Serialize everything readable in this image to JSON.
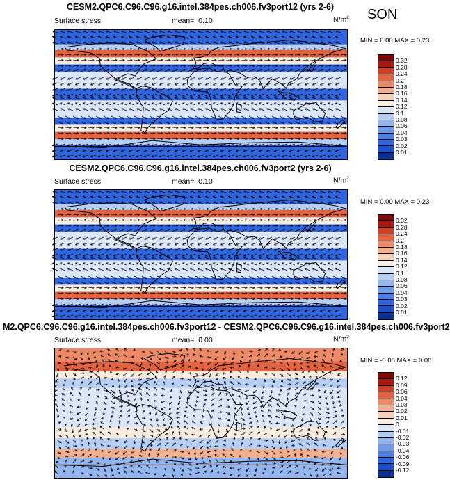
{
  "season": "SON",
  "palette_abs": [
    "#0a2f8f",
    "#1a4fc8",
    "#2f66dd",
    "#4a7fe6",
    "#6d9aeb",
    "#94b6f0",
    "#b8cff5",
    "#dbe6f9",
    "#f8ecdf",
    "#f6d2b8",
    "#f2b08e",
    "#ec8a66",
    "#e2633f",
    "#cf3f22",
    "#a81a10",
    "#7a0806"
  ],
  "palette_diff": [
    "#0a2f8f",
    "#1a4fc8",
    "#2f66dd",
    "#4a7fe6",
    "#6d9aeb",
    "#94b6f0",
    "#b8cff5",
    "#dbe6f9",
    "#f8ecdf",
    "#f6d2b8",
    "#f2b08e",
    "#ec8a66",
    "#e2633f",
    "#cf3f22",
    "#a81a10",
    "#7a0806"
  ],
  "panels": [
    {
      "title": "CESM2.QPC6.C96.C96.g16.intel.384pes.ch006.fv3port12 (yrs 2-6)",
      "field": "Surface stress",
      "mean_label": "mean=",
      "mean_value": "0.10",
      "units": "N/m",
      "units_sup": "2",
      "minmax": "MIN =  0.00 MAX =  0.23",
      "levels": [
        "0.32",
        "0.28",
        "0.24",
        "0.2",
        "0.18",
        "0.16",
        "0.14",
        "0.12",
        "0.1",
        "0.08",
        "0.06",
        "0.04",
        "0.03",
        "0.02",
        "0.01"
      ]
    },
    {
      "title": "CESM2.QPC6.C96.C96.g16.intel.384pes.ch006.fv3port2 (yrs 2-6)",
      "field": "Surface stress",
      "mean_label": "mean=",
      "mean_value": "0.10",
      "units": "N/m",
      "units_sup": "2",
      "minmax": "MIN =  0.00 MAX =  0.23",
      "levels": [
        "0.32",
        "0.28",
        "0.24",
        "0.2",
        "0.18",
        "0.16",
        "0.14",
        "0.12",
        "0.1",
        "0.08",
        "0.06",
        "0.04",
        "0.03",
        "0.02",
        "0.01"
      ]
    },
    {
      "title": "M2.QPC6.C96.C96.g16.intel.384pes.ch006.fv3port12 - CESM2.QPC6.C96.C96.g16.intel.384pes.ch006.fv3port2",
      "field": "Surface stress",
      "mean_label": "mean=",
      "mean_value": "0.00",
      "units": "N/m",
      "units_sup": "2",
      "minmax": "MIN = -0.08 MAX =  0.08",
      "levels": [
        "0.12",
        "0.09",
        "0.06",
        "0.04",
        "0.03",
        "0.02",
        "0.01",
        "0",
        "-0.01",
        "-0.02",
        "-0.03",
        "-0.04",
        "-0.06",
        "-0.09",
        "-0.12"
      ]
    }
  ],
  "chart_data": [
    {
      "type": "heatmap",
      "title": "CESM2.QPC6.C96.C96.g16.intel.384pes.ch006.fv3port12 (yrs 2-6)",
      "variable": "Surface stress",
      "units": "N/m2",
      "mean": 0.1,
      "min": 0.0,
      "max": 0.23,
      "contour_levels": [
        0.01,
        0.02,
        0.03,
        0.04,
        0.06,
        0.08,
        0.1,
        0.12,
        0.14,
        0.16,
        0.18,
        0.2,
        0.24,
        0.28,
        0.32
      ],
      "zonal_bands": [
        {
          "lat_from": 90,
          "lat_to": 70,
          "value": 0.03
        },
        {
          "lat_from": 70,
          "lat_to": 62,
          "value": 0.1
        },
        {
          "lat_from": 62,
          "lat_to": 52,
          "value": 0.24
        },
        {
          "lat_from": 52,
          "lat_to": 42,
          "value": 0.14
        },
        {
          "lat_from": 42,
          "lat_to": 32,
          "value": 0.03
        },
        {
          "lat_from": 32,
          "lat_to": 8,
          "value": 0.12
        },
        {
          "lat_from": 8,
          "lat_to": -8,
          "value": 0.03
        },
        {
          "lat_from": -8,
          "lat_to": -32,
          "value": 0.12
        },
        {
          "lat_from": -32,
          "lat_to": -42,
          "value": 0.03
        },
        {
          "lat_from": -42,
          "lat_to": -52,
          "value": 0.14
        },
        {
          "lat_from": -52,
          "lat_to": -62,
          "value": 0.24
        },
        {
          "lat_from": -62,
          "lat_to": -70,
          "value": 0.1
        },
        {
          "lat_from": -70,
          "lat_to": -90,
          "value": 0.03
        }
      ],
      "vectors": "wind stress arrows, westerly in midlatitudes, easterly in tropics"
    },
    {
      "type": "heatmap",
      "title": "CESM2.QPC6.C96.C96.g16.intel.384pes.ch006.fv3port2 (yrs 2-6)",
      "variable": "Surface stress",
      "units": "N/m2",
      "mean": 0.1,
      "min": 0.0,
      "max": 0.23,
      "contour_levels": [
        0.01,
        0.02,
        0.03,
        0.04,
        0.06,
        0.08,
        0.1,
        0.12,
        0.14,
        0.16,
        0.18,
        0.2,
        0.24,
        0.28,
        0.32
      ],
      "zonal_bands": [
        {
          "lat_from": 90,
          "lat_to": 70,
          "value": 0.03
        },
        {
          "lat_from": 70,
          "lat_to": 62,
          "value": 0.1
        },
        {
          "lat_from": 62,
          "lat_to": 52,
          "value": 0.24
        },
        {
          "lat_from": 52,
          "lat_to": 42,
          "value": 0.14
        },
        {
          "lat_from": 42,
          "lat_to": 32,
          "value": 0.03
        },
        {
          "lat_from": 32,
          "lat_to": 8,
          "value": 0.12
        },
        {
          "lat_from": 8,
          "lat_to": -8,
          "value": 0.03
        },
        {
          "lat_from": -8,
          "lat_to": -32,
          "value": 0.12
        },
        {
          "lat_from": -32,
          "lat_to": -42,
          "value": 0.03
        },
        {
          "lat_from": -42,
          "lat_to": -52,
          "value": 0.14
        },
        {
          "lat_from": -52,
          "lat_to": -62,
          "value": 0.24
        },
        {
          "lat_from": -62,
          "lat_to": -70,
          "value": 0.1
        },
        {
          "lat_from": -70,
          "lat_to": -90,
          "value": 0.03
        }
      ],
      "vectors": "wind stress arrows, westerly in midlatitudes, easterly in tropics"
    },
    {
      "type": "heatmap",
      "title": "M2.QPC6.C96.C96.g16.intel.384pes.ch006.fv3port12 - CESM2.QPC6.C96.C96.g16.intel.384pes.ch006.fv3port2",
      "variable": "Surface stress",
      "units": "N/m2",
      "mean": 0.0,
      "min": -0.08,
      "max": 0.08,
      "contour_levels": [
        -0.12,
        -0.09,
        -0.06,
        -0.04,
        -0.03,
        -0.02,
        -0.01,
        0,
        0.01,
        0.02,
        0.03,
        0.04,
        0.06,
        0.09,
        0.12
      ],
      "zonal_bands": [
        {
          "lat_from": 90,
          "lat_to": 72,
          "value": 0.04
        },
        {
          "lat_from": 72,
          "lat_to": 58,
          "value": 0.06
        },
        {
          "lat_from": 58,
          "lat_to": 48,
          "value": 0.01
        },
        {
          "lat_from": 48,
          "lat_to": 35,
          "value": -0.01
        },
        {
          "lat_from": 35,
          "lat_to": -20,
          "value": 0.0
        },
        {
          "lat_from": -20,
          "lat_to": -35,
          "value": 0.01
        },
        {
          "lat_from": -35,
          "lat_to": -50,
          "value": -0.01
        },
        {
          "lat_from": -50,
          "lat_to": -62,
          "value": 0.03
        },
        {
          "lat_from": -62,
          "lat_to": -90,
          "value": -0.02
        }
      ],
      "vectors": "difference wind stress arrows"
    }
  ]
}
